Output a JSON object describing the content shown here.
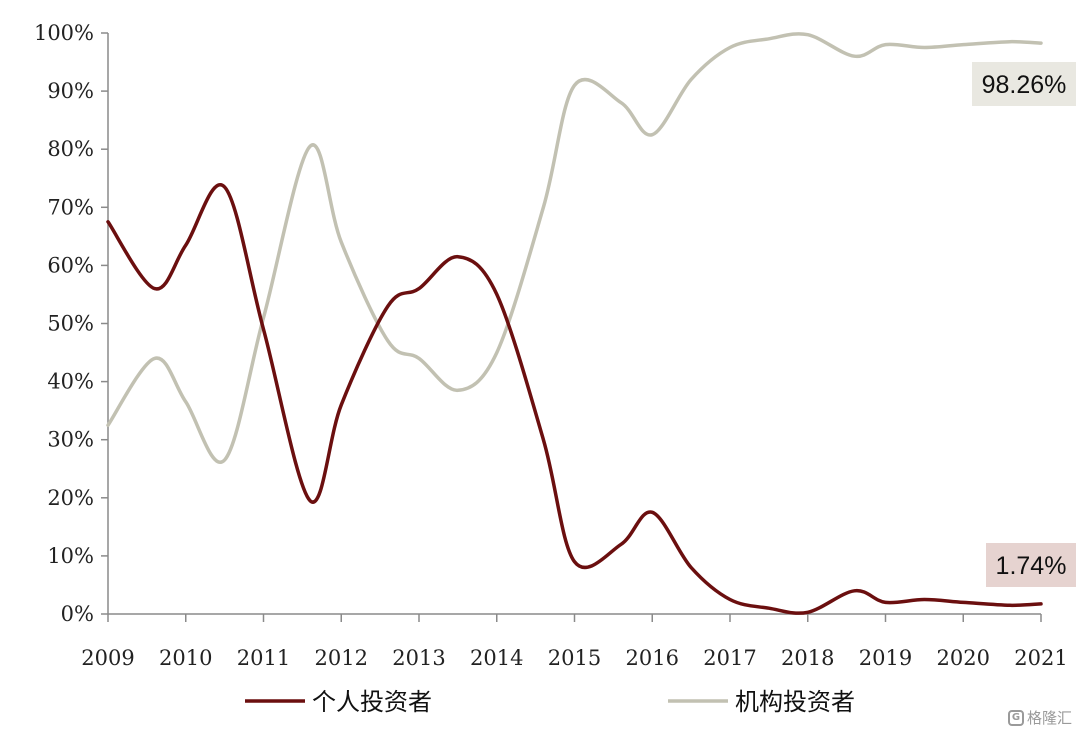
{
  "chart_data": {
    "type": "line",
    "x": [
      2009,
      2009.6,
      2010,
      2010.5,
      2011,
      2011.6,
      2012,
      2012.6,
      2013,
      2013.5,
      2014,
      2014.6,
      2015,
      2015.6,
      2016,
      2016.5,
      2017,
      2017.5,
      2018,
      2018.6,
      2019,
      2019.5,
      2020,
      2020.6,
      2021
    ],
    "series": [
      {
        "name": "个人投资者",
        "color": "#6b0f0f",
        "values": [
          67.5,
          56,
          63.5,
          73.5,
          49,
          19.5,
          36,
          53,
          56,
          61.5,
          55,
          30,
          9,
          12,
          17.5,
          8,
          2.5,
          1,
          0.3,
          4,
          2,
          2.5,
          2,
          1.5,
          1.74
        ]
      },
      {
        "name": "机构投资者",
        "color": "#c2c1b2",
        "values": [
          32.5,
          44,
          36.5,
          26.5,
          51,
          80.5,
          64,
          47,
          44,
          38.5,
          45,
          70,
          91,
          88,
          82.5,
          92,
          97.5,
          99,
          99.7,
          96,
          98,
          97.5,
          98,
          98.5,
          98.26
        ]
      }
    ],
    "xticks": [
      "2009",
      "2010",
      "2011",
      "2012",
      "2013",
      "2014",
      "2015",
      "2016",
      "2017",
      "2018",
      "2019",
      "2020",
      "2021"
    ],
    "yticks": [
      "0%",
      "10%",
      "20%",
      "30%",
      "40%",
      "50%",
      "60%",
      "70%",
      "80%",
      "90%",
      "100%"
    ],
    "xlim": [
      2009,
      2021
    ],
    "ylim": [
      0,
      100
    ],
    "legend_position": "bottom",
    "grid": false,
    "annotations": [
      {
        "text": "98.26%",
        "series": 1,
        "bg": "#e9e8e1"
      },
      {
        "text": "1.74%",
        "series": 0,
        "bg": "#e6d3d0"
      }
    ]
  },
  "watermark": {
    "text": "格隆汇",
    "icon": "gelonghui-logo-icon"
  }
}
